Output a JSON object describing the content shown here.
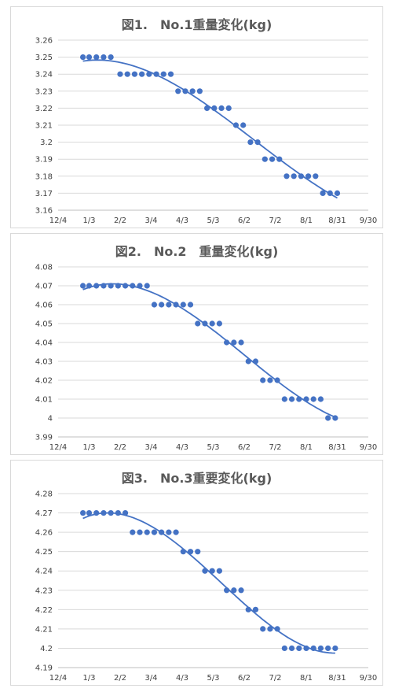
{
  "chart_data": [
    {
      "type": "scatter",
      "title": "図1.　No.1重量変化(kg)",
      "x_ticks": [
        "12/4",
        "1/3",
        "2/2",
        "3/4",
        "4/3",
        "5/3",
        "6/2",
        "7/2",
        "8/1",
        "8/31",
        "9/30"
      ],
      "y_ticks": [
        "3.16",
        "3.17",
        "3.18",
        "3.19",
        "3.2",
        "3.21",
        "3.22",
        "3.23",
        "3.24",
        "3.25",
        "3.26"
      ],
      "ylim": [
        3.16,
        3.26
      ],
      "grid": true,
      "trendline": true,
      "series": [
        {
          "x": [
            "12/28",
            "1/3",
            "1/10",
            "1/17",
            "1/24",
            "2/2",
            "2/9",
            "2/16",
            "2/23",
            "3/2",
            "3/9",
            "3/16",
            "3/23",
            "3/30",
            "4/6",
            "4/13",
            "4/20",
            "4/27",
            "5/4",
            "5/11",
            "5/18",
            "5/25",
            "6/1",
            "6/8",
            "6/15",
            "6/22",
            "6/29",
            "7/6",
            "7/13",
            "7/20",
            "7/27",
            "8/3",
            "8/10",
            "8/17",
            "8/24",
            "8/31"
          ],
          "y": [
            3.25,
            3.25,
            3.25,
            3.25,
            3.25,
            3.24,
            3.24,
            3.24,
            3.24,
            3.24,
            3.24,
            3.24,
            3.24,
            3.23,
            3.23,
            3.23,
            3.23,
            3.22,
            3.22,
            3.22,
            3.22,
            3.21,
            3.21,
            3.2,
            3.2,
            3.19,
            3.19,
            3.19,
            3.18,
            3.18,
            3.18,
            3.18,
            3.18,
            3.17,
            3.17,
            3.17
          ]
        }
      ],
      "color": "#4472c4"
    },
    {
      "type": "scatter",
      "title": "図2.　No.2　重量変化(kg)",
      "x_ticks": [
        "12/4",
        "1/3",
        "2/2",
        "3/4",
        "4/3",
        "5/3",
        "6/2",
        "7/2",
        "8/1",
        "8/31",
        "9/30"
      ],
      "y_ticks": [
        "3.99",
        "4",
        "4.01",
        "4.02",
        "4.03",
        "4.04",
        "4.05",
        "4.06",
        "4.07",
        "4.08"
      ],
      "ylim": [
        3.99,
        4.08
      ],
      "grid": true,
      "trendline": true,
      "series": [
        {
          "x": [
            "12/28",
            "1/3",
            "1/10",
            "1/17",
            "1/24",
            "1/31",
            "2/7",
            "2/14",
            "2/21",
            "2/28",
            "3/7",
            "3/14",
            "3/21",
            "3/28",
            "4/4",
            "4/11",
            "4/18",
            "4/25",
            "5/2",
            "5/9",
            "5/16",
            "5/23",
            "5/30",
            "6/6",
            "6/13",
            "6/20",
            "6/27",
            "7/4",
            "7/11",
            "7/18",
            "7/25",
            "8/1",
            "8/8",
            "8/15",
            "8/22",
            "8/29"
          ],
          "y": [
            4.07,
            4.07,
            4.07,
            4.07,
            4.07,
            4.07,
            4.07,
            4.07,
            4.07,
            4.07,
            4.06,
            4.06,
            4.06,
            4.06,
            4.06,
            4.06,
            4.05,
            4.05,
            4.05,
            4.05,
            4.04,
            4.04,
            4.04,
            4.03,
            4.03,
            4.02,
            4.02,
            4.02,
            4.01,
            4.01,
            4.01,
            4.01,
            4.01,
            4.01,
            4.0,
            4.0
          ]
        }
      ],
      "color": "#4472c4"
    },
    {
      "type": "scatter",
      "title": "図3.　No.3重要変化(kg)",
      "x_ticks": [
        "12/4",
        "1/3",
        "2/2",
        "3/4",
        "4/3",
        "5/3",
        "6/2",
        "7/2",
        "8/1",
        "8/31",
        "9/30"
      ],
      "y_ticks": [
        "4.19",
        "4.2",
        "4.21",
        "4.22",
        "4.23",
        "4.24",
        "4.25",
        "4.26",
        "4.27",
        "4.28"
      ],
      "ylim": [
        4.19,
        4.28
      ],
      "grid": true,
      "trendline": true,
      "series": [
        {
          "x": [
            "12/28",
            "1/3",
            "1/10",
            "1/17",
            "1/24",
            "1/31",
            "2/7",
            "2/14",
            "2/21",
            "2/28",
            "3/7",
            "3/14",
            "3/21",
            "3/28",
            "4/4",
            "4/11",
            "4/18",
            "4/25",
            "5/2",
            "5/9",
            "5/16",
            "5/23",
            "5/30",
            "6/6",
            "6/13",
            "6/20",
            "6/27",
            "7/4",
            "7/11",
            "7/18",
            "7/25",
            "8/1",
            "8/8",
            "8/15",
            "8/22",
            "8/29"
          ],
          "y": [
            4.27,
            4.27,
            4.27,
            4.27,
            4.27,
            4.27,
            4.27,
            4.26,
            4.26,
            4.26,
            4.26,
            4.26,
            4.26,
            4.26,
            4.25,
            4.25,
            4.25,
            4.24,
            4.24,
            4.24,
            4.23,
            4.23,
            4.23,
            4.22,
            4.22,
            4.21,
            4.21,
            4.21,
            4.2,
            4.2,
            4.2,
            4.2,
            4.2,
            4.2,
            4.2,
            4.2
          ]
        }
      ],
      "color": "#4472c4"
    }
  ]
}
